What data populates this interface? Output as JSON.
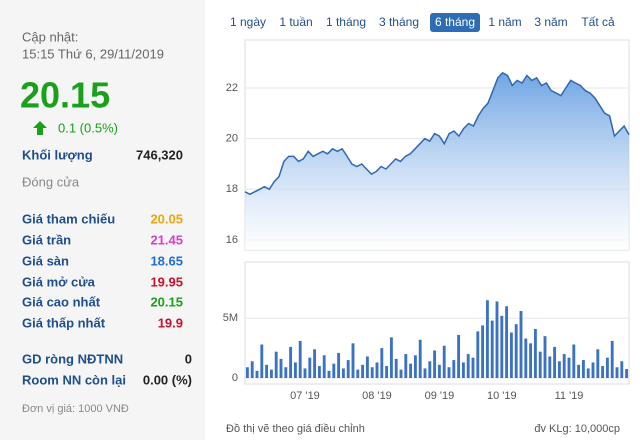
{
  "sidebar": {
    "update_label": "Cập nhật:",
    "update_time": "15:15 Thứ 6, 29/11/2019",
    "price": "20.15",
    "price_color": "#1aa01a",
    "change": "0.1 (0.5%)",
    "volume_label": "Khối lượng",
    "volume": "746,320",
    "status": "Đóng cửa",
    "rows": [
      {
        "label": "Giá tham chiếu",
        "value": "20.05",
        "color": "#f0a30a"
      },
      {
        "label": "Giá trần",
        "value": "21.45",
        "color": "#d43fc9"
      },
      {
        "label": "Giá sàn",
        "value": "18.65",
        "color": "#1a6fd4"
      },
      {
        "label": "Giá mở cửa",
        "value": "19.95",
        "color": "#c8102e"
      },
      {
        "label": "Giá cao nhất",
        "value": "20.15",
        "color": "#1aa01a"
      },
      {
        "label": "Giá thấp nhất",
        "value": "19.9",
        "color": "#c8102e"
      }
    ],
    "foreign": [
      {
        "label": "GD ròng NĐTNN",
        "value": "0"
      },
      {
        "label": "Room NN còn lại",
        "value": "0.00 (%)"
      }
    ],
    "unit_note": "Đơn vị giá: 1000 VNĐ"
  },
  "tabs": {
    "items": [
      "1 ngày",
      "1 tuần",
      "1 tháng",
      "3 tháng",
      "6 tháng",
      "1 năm",
      "3 năm",
      "Tất cả"
    ],
    "selected": 4
  },
  "footer": {
    "left": "Đồ thị vẽ theo giá điều chỉnh",
    "right": "đv KLg: 10,000cp"
  },
  "chart_data": [
    {
      "type": "area",
      "color": "#2f68b0",
      "grid": true,
      "ylim": [
        15.6,
        23.7
      ],
      "yticks": [
        16,
        18,
        20,
        22
      ],
      "values": [
        17.9,
        17.8,
        17.9,
        18.0,
        18.1,
        18.0,
        18.3,
        18.5,
        19.1,
        19.3,
        19.3,
        19.1,
        19.2,
        19.5,
        19.3,
        19.4,
        19.5,
        19.4,
        19.6,
        19.5,
        19.6,
        19.3,
        19.0,
        18.9,
        19.0,
        18.8,
        18.6,
        18.7,
        18.9,
        18.8,
        19.0,
        19.2,
        19.1,
        19.3,
        19.4,
        19.6,
        19.8,
        20.0,
        19.9,
        20.2,
        20.1,
        19.8,
        20.2,
        20.3,
        20.1,
        20.4,
        20.6,
        20.5,
        20.9,
        21.2,
        21.4,
        21.9,
        22.4,
        22.6,
        22.5,
        22.1,
        22.3,
        22.2,
        22.5,
        22.3,
        22.4,
        22.1,
        22.2,
        21.9,
        21.8,
        21.7,
        22.0,
        22.3,
        22.2,
        22.1,
        21.9,
        21.8,
        21.6,
        21.3,
        21.0,
        20.9,
        20.1,
        20.3,
        20.5,
        20.15
      ]
    },
    {
      "type": "bar",
      "color": "#3b72c4",
      "grid": true,
      "ylim": [
        0,
        9700000
      ],
      "yticks": [
        0,
        {
          "value": 5000000,
          "label": "5M"
        }
      ],
      "categories": [
        null,
        null,
        null,
        null,
        null,
        null,
        null,
        null,
        null,
        null,
        null,
        null,
        "07 '19",
        null,
        null,
        null,
        null,
        null,
        null,
        null,
        null,
        null,
        null,
        null,
        null,
        null,
        null,
        "08 '19",
        null,
        null,
        null,
        null,
        null,
        null,
        null,
        null,
        null,
        null,
        null,
        null,
        "09 '19",
        null,
        null,
        null,
        null,
        null,
        null,
        null,
        null,
        null,
        null,
        null,
        null,
        "10 '19",
        null,
        null,
        null,
        null,
        null,
        null,
        null,
        null,
        null,
        null,
        null,
        null,
        null,
        "11 '19",
        null,
        null,
        null,
        null,
        null,
        null,
        null,
        null,
        null,
        null,
        null,
        null
      ],
      "values": [
        900000,
        1400000,
        600000,
        2800000,
        1100000,
        700000,
        2200000,
        1600000,
        900000,
        2600000,
        1300000,
        3100000,
        800000,
        1700000,
        2400000,
        1000000,
        1900000,
        600000,
        1200000,
        2100000,
        800000,
        1500000,
        2900000,
        700000,
        1100000,
        1800000,
        900000,
        1300000,
        2500000,
        1000000,
        3400000,
        1600000,
        700000,
        2000000,
        1200000,
        1900000,
        3200000,
        800000,
        1400000,
        2300000,
        1100000,
        2700000,
        900000,
        1500000,
        3600000,
        1300000,
        2000000,
        1700000,
        3900000,
        4400000,
        6500000,
        4800000,
        6400000,
        5200000,
        6000000,
        3800000,
        4500000,
        5600000,
        3300000,
        2900000,
        4100000,
        2200000,
        3500000,
        1800000,
        2600000,
        1400000,
        2000000,
        1700000,
        2800000,
        1100000,
        1500000,
        800000,
        1300000,
        2400000,
        1000000,
        1700000,
        3100000,
        900000,
        1400000,
        750000
      ]
    }
  ]
}
